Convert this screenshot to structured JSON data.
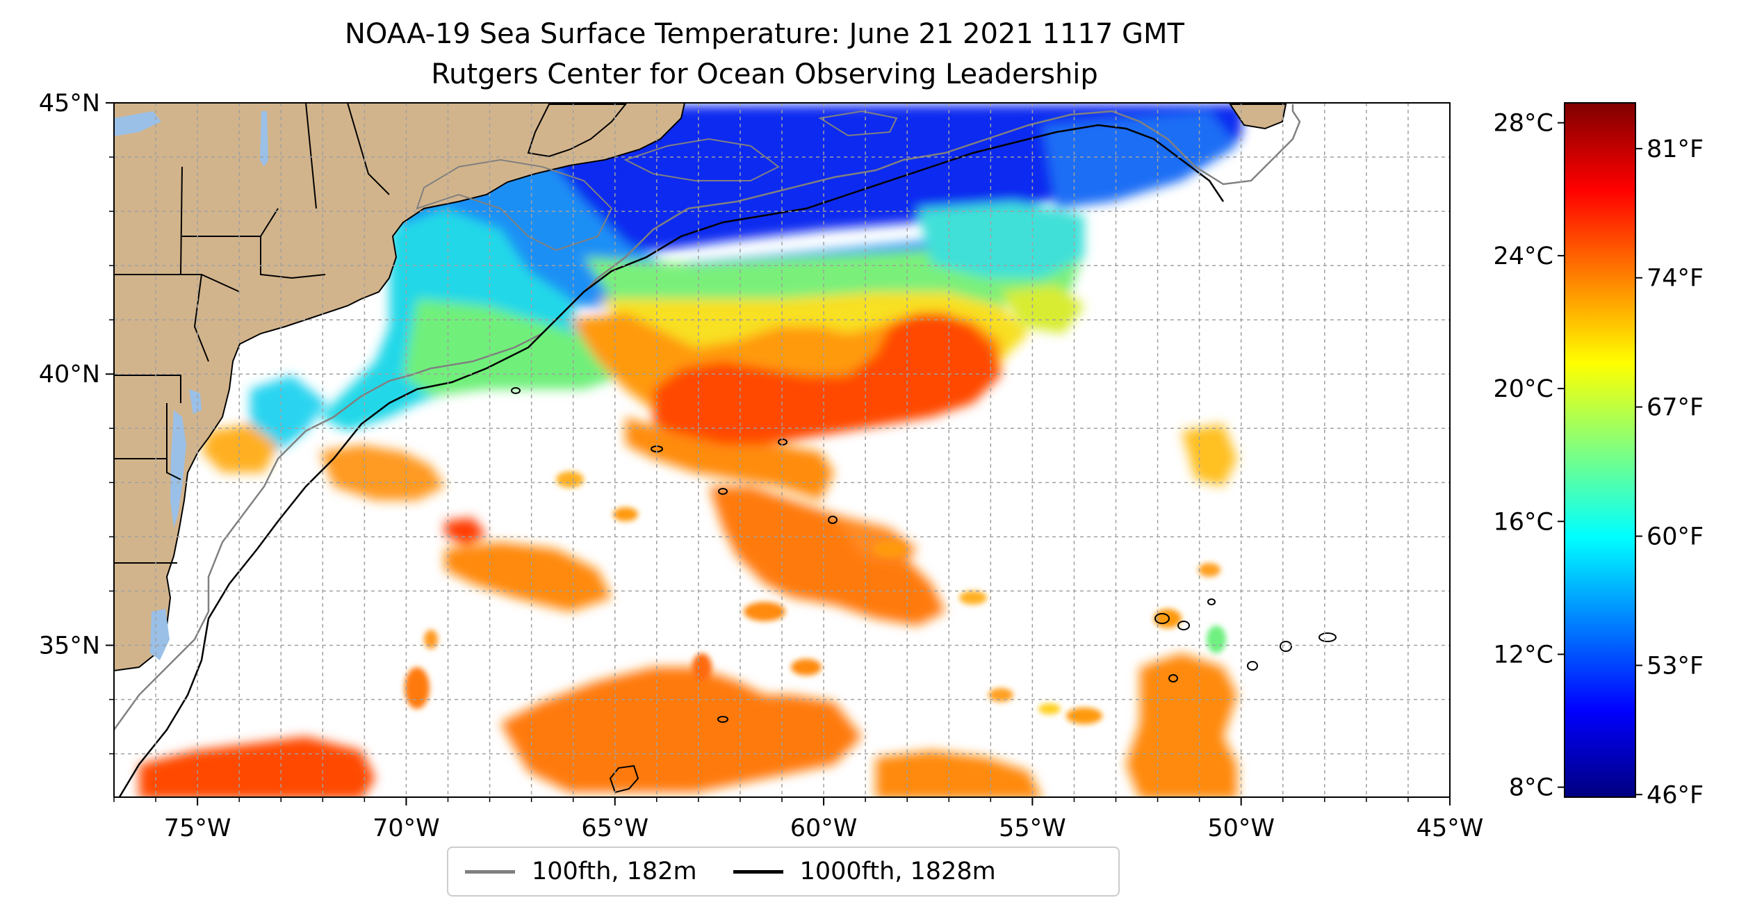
{
  "title": {
    "line1": "NOAA-19 Sea Surface Temperature: June 21 2021 1117 GMT",
    "line2": "Rutgers Center for Ocean Observing Leadership"
  },
  "map": {
    "extent": {
      "lon": [
        -77,
        -45
      ],
      "lat": [
        32.2,
        45
      ]
    },
    "lon_ticks": [
      -75,
      -70,
      -65,
      -60,
      -55,
      -50,
      -45
    ],
    "lon_labels": [
      "75°W",
      "70°W",
      "65°W",
      "60°W",
      "55°W",
      "50°W",
      "45°W"
    ],
    "lat_ticks": [
      35,
      40,
      45
    ],
    "lat_labels": [
      "35°N",
      "40°N",
      "45°N"
    ],
    "gridlines": true,
    "land_color": "#d2b48c",
    "water_color": "#9ac0e8",
    "missing_data_color": "#ffffff"
  },
  "colorbar": {
    "colormap": "jet",
    "celsius_range": [
      7.7,
      28.6
    ],
    "celsius_ticks": [
      8,
      12,
      16,
      20,
      24,
      28
    ],
    "celsius_labels": [
      "8°C",
      "12°C",
      "16°C",
      "20°C",
      "24°C",
      "28°C"
    ],
    "fahrenheit_ticks": [
      46,
      53,
      60,
      67,
      74,
      81
    ],
    "fahrenheit_labels": [
      "46°F",
      "53°F",
      "60°F",
      "67°F",
      "74°F",
      "81°F"
    ]
  },
  "legend": {
    "placement": "bottom-center",
    "items": [
      {
        "label": "100fth, 182m",
        "color": "#808080"
      },
      {
        "label": "1000fth, 1828m",
        "color": "#000000"
      }
    ]
  }
}
